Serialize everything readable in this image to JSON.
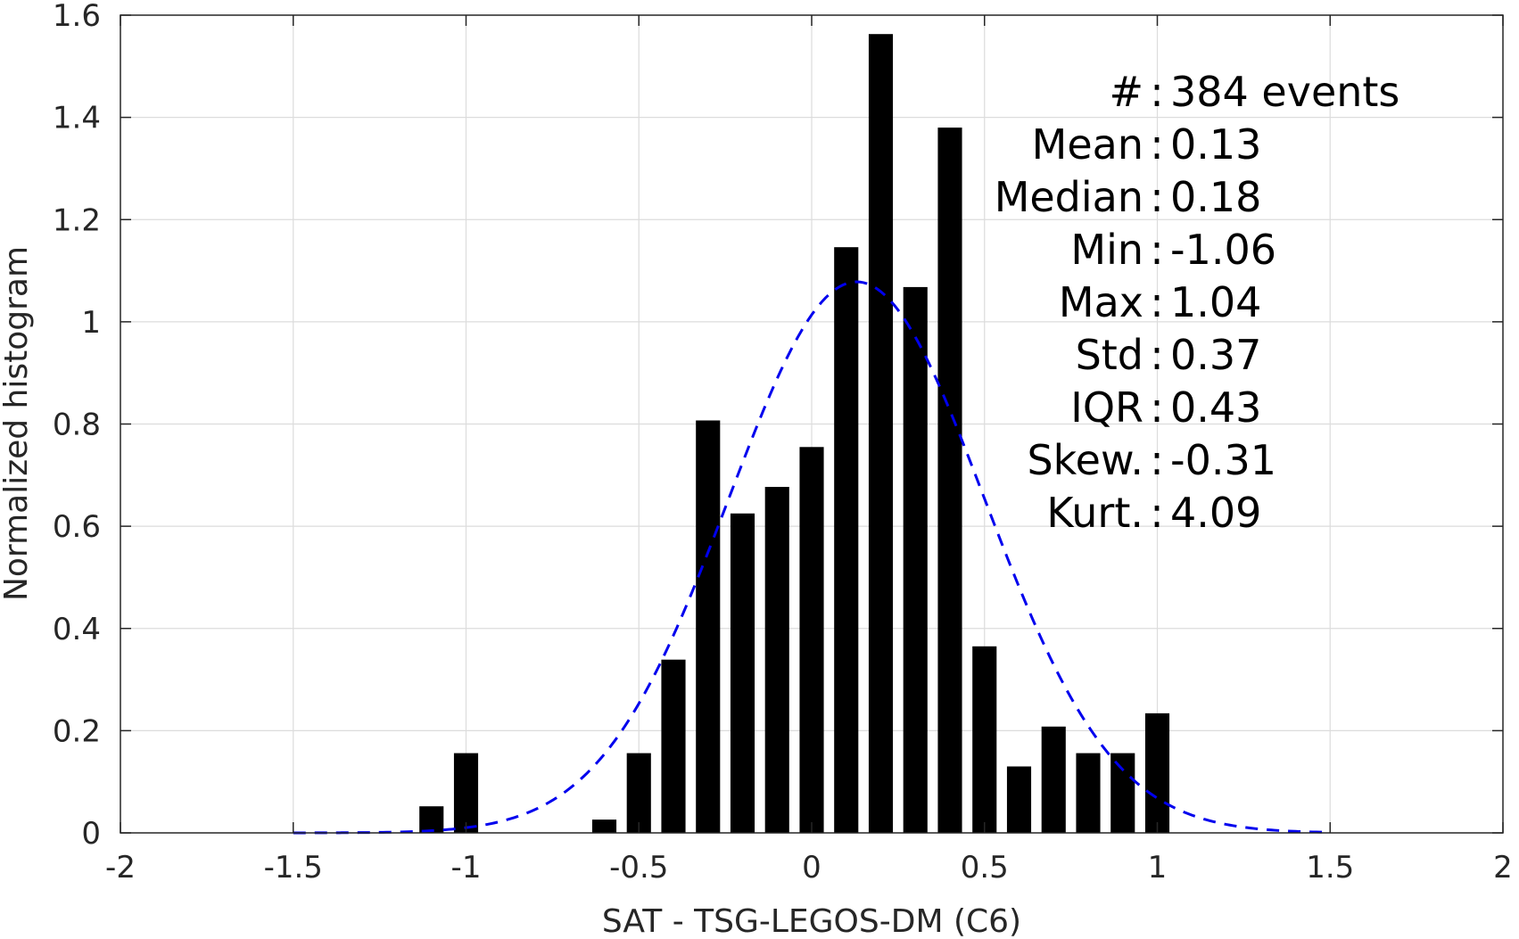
{
  "chart_data": {
    "type": "bar",
    "title": "",
    "xlabel": "SAT - TSG-LEGOS-DM (C6)",
    "ylabel": "Normalized histogram",
    "xlim": [
      -2,
      2
    ],
    "ylim": [
      0,
      1.6
    ],
    "xticks": [
      "-2",
      "-1.5",
      "-1",
      "-0.5",
      "0",
      "0.5",
      "1",
      "1.5",
      "2"
    ],
    "yticks": [
      "0",
      "0.2",
      "0.4",
      "0.6",
      "0.8",
      "1",
      "1.2",
      "1.4",
      "1.6"
    ],
    "xtick_values": [
      -2,
      -1.5,
      -1,
      -0.5,
      0,
      0.5,
      1,
      1.5,
      2
    ],
    "ytick_values": [
      0,
      0.2,
      0.4,
      0.6,
      0.8,
      1,
      1.2,
      1.4,
      1.6
    ],
    "grid": true,
    "bar_color": "#000000",
    "bar_width": 0.07,
    "bars": [
      {
        "x": -1.1,
        "y": 0.052
      },
      {
        "x": -1.0,
        "y": 0.156
      },
      {
        "x": -0.6,
        "y": 0.026
      },
      {
        "x": -0.5,
        "y": 0.156
      },
      {
        "x": -0.4,
        "y": 0.339
      },
      {
        "x": -0.3,
        "y": 0.807
      },
      {
        "x": -0.2,
        "y": 0.625
      },
      {
        "x": -0.1,
        "y": 0.677
      },
      {
        "x": 0.0,
        "y": 0.755
      },
      {
        "x": 0.1,
        "y": 1.146
      },
      {
        "x": 0.2,
        "y": 1.563
      },
      {
        "x": 0.3,
        "y": 1.068
      },
      {
        "x": 0.4,
        "y": 1.38
      },
      {
        "x": 0.5,
        "y": 0.365
      },
      {
        "x": 0.6,
        "y": 0.13
      },
      {
        "x": 0.7,
        "y": 0.208
      },
      {
        "x": 0.8,
        "y": 0.156
      },
      {
        "x": 0.9,
        "y": 0.156
      },
      {
        "x": 1.0,
        "y": 0.234
      }
    ],
    "fit_curve": {
      "style": "dashed",
      "color": "#0000ee",
      "mean": 0.13,
      "std": 0.37,
      "x_range": [
        -1.5,
        1.5
      ]
    },
    "annotations": [
      {
        "label": "#",
        "sep": ":",
        "value": "384 events"
      },
      {
        "label": "Mean",
        "sep": ":",
        "value": "0.13"
      },
      {
        "label": "Median",
        "sep": ":",
        "value": "0.18"
      },
      {
        "label": "Min",
        "sep": ":",
        "value": "-1.06"
      },
      {
        "label": "Max",
        "sep": ":",
        "value": "1.04"
      },
      {
        "label": "Std",
        "sep": ":",
        "value": "0.37"
      },
      {
        "label": "IQR",
        "sep": ":",
        "value": "0.43"
      },
      {
        "label": "Skew.",
        "sep": ":",
        "value": "-0.31"
      },
      {
        "label": "Kurt.",
        "sep": ":",
        "value": "4.09"
      }
    ]
  }
}
